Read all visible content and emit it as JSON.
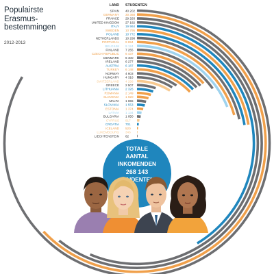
{
  "title_lines": [
    "Populairste",
    "Erasmus-",
    "bestemmingen"
  ],
  "subtitle": "2012-2013",
  "colors": {
    "blue": "#1f86bd",
    "orange": "#f0a04b",
    "gray": "#6d6e71",
    "lightblue": "#9fd3ee",
    "lightorange": "#f7c98f",
    "dark": "#2b2b2b"
  },
  "total_badge": {
    "line1": "TOTALE",
    "line2": "AANTAL",
    "line3": "INKOMENDEN",
    "line4": "268 143",
    "line5": "STUDENTEN"
  },
  "illustration": "four-student-portraits",
  "chart_data": {
    "type": "radial-bar",
    "header_country": "LAND",
    "header_value": "STUDENTEN",
    "countries": [
      {
        "name": "SPAIN",
        "value": 40202,
        "color": "gray"
      },
      {
        "name": "GERMANY",
        "value": 30368,
        "color": "orange"
      },
      {
        "name": "FRANCE",
        "value": 29293,
        "color": "gray"
      },
      {
        "name": "UNITED KINGDOM",
        "value": 27182,
        "color": "gray"
      },
      {
        "name": "ITALY",
        "value": 19964,
        "color": "blue"
      },
      {
        "name": "SWEDEN",
        "value": 10795,
        "color": "orange"
      },
      {
        "name": "POLAND",
        "value": 10772,
        "color": "blue"
      },
      {
        "name": "NETHERLANDS",
        "value": 10298,
        "color": "gray"
      },
      {
        "name": "PORTUGAL",
        "value": 9894,
        "color": "orange"
      },
      {
        "name": "BELGIUM",
        "value": 9124,
        "color": "lightblue"
      },
      {
        "name": "FINLAND",
        "value": 7255,
        "color": "gray"
      },
      {
        "name": "CZECH REPUBLIC",
        "value": 6437,
        "color": "orange"
      },
      {
        "name": "DENMARK",
        "value": 6400,
        "color": "gray"
      },
      {
        "name": "IRELAND",
        "value": 6277,
        "color": "gray"
      },
      {
        "name": "AUSTRIA",
        "value": 6187,
        "color": "blue"
      },
      {
        "name": "TURKEY",
        "value": 6148,
        "color": "orange"
      },
      {
        "name": "NORWAY",
        "value": 4603,
        "color": "gray"
      },
      {
        "name": "HUNGARY",
        "value": 4318,
        "color": "gray"
      },
      {
        "name": "SWITZERLAND",
        "value": 4298,
        "color": "lightorange"
      },
      {
        "name": "GREECE",
        "value": 2507,
        "color": "gray"
      },
      {
        "name": "LITHUANIA",
        "value": 2326,
        "color": "blue"
      },
      {
        "name": "ROMANIA",
        "value": 2149,
        "color": "orange"
      },
      {
        "name": "SLOVENIA",
        "value": 1920,
        "color": "orange"
      },
      {
        "name": "MALTA",
        "value": 1655,
        "color": "gray"
      },
      {
        "name": "SLOVAKIA",
        "value": 1553,
        "color": "blue"
      },
      {
        "name": "ESTONIA",
        "value": 1374,
        "color": "orange"
      },
      {
        "name": "LATVIA",
        "value": 1134,
        "color": "lightblue"
      },
      {
        "name": "BULGARIA",
        "value": 1050,
        "color": "gray"
      },
      {
        "name": "CYPRUS",
        "value": 817,
        "color": "lightorange"
      },
      {
        "name": "CROATIA",
        "value": 701,
        "color": "blue"
      },
      {
        "name": "ICELAND",
        "value": 520,
        "color": "orange"
      },
      {
        "name": "LUXEMBOURG",
        "value": 346,
        "color": "lightorange"
      },
      {
        "name": "LIECHTENSTEIN",
        "value": 62,
        "color": "gray"
      }
    ],
    "value_labels": [
      "40 202",
      "30 368",
      "29 293",
      "27 182",
      "19 964",
      "10 795",
      "10 772",
      "10 298",
      "9 894",
      "9 124",
      "7 255",
      "6 437",
      "6 400",
      "6 277",
      "6 187",
      "6 148",
      "4 603",
      "4 318",
      "4 298",
      "2 507",
      "2 326",
      "2 149",
      "1 920",
      "1 655",
      "1 553",
      "1 374",
      "1 134",
      "1 050",
      "817",
      "701",
      "520",
      "346",
      "62"
    ]
  }
}
